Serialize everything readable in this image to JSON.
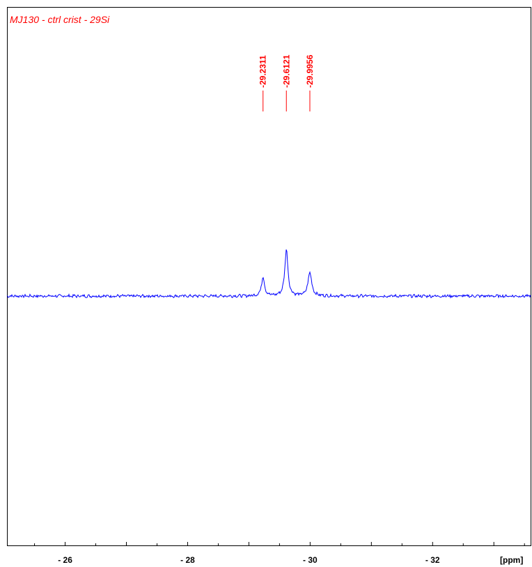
{
  "chart_data": {
    "type": "line",
    "title": "MJ130 - ctrl crist - 29Si",
    "xlabel": "[ppm]",
    "x_range": [
      -25.05,
      -33.6
    ],
    "x_reversed": true,
    "x_major_ticks": [
      -26,
      -28,
      -30,
      -32
    ],
    "x_tick_labels": [
      "- 26",
      "- 28",
      "- 30",
      "- 32"
    ],
    "x_minor_step": 0.5,
    "grid": false,
    "baseline_noise": 0.02,
    "peaks": [
      {
        "label": "-29.2311",
        "position": -29.2311,
        "height": 0.3,
        "width": 0.03
      },
      {
        "label": "-29.6121",
        "position": -29.6121,
        "height": 0.75,
        "width": 0.03
      },
      {
        "label": "-29.9956",
        "position": -29.9956,
        "height": 0.38,
        "width": 0.035
      }
    ],
    "colors": {
      "spectrum": "#0000ff",
      "annotation": "#ff0000",
      "axis": "#000000"
    }
  }
}
